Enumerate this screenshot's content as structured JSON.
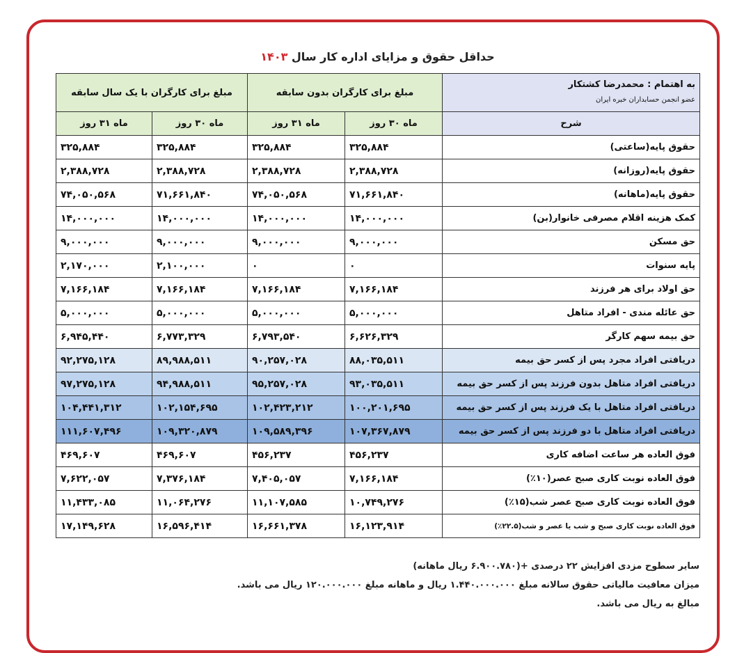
{
  "header": {
    "title": "حداقل حقوق و مزایای اداره کار سال",
    "year": "۱۴۰۳"
  },
  "table": {
    "author": "به اهتمام : محمدرضا کشتکار",
    "author_note": "عضو انجمن حسابداران خبره ایران",
    "group_headers": [
      "مبلغ برای کارگران بدون سابقه",
      "مبلغ برای کارگران با یک سال سابقه"
    ],
    "column_headers": [
      "شرح",
      "ماه ۳۰ روز",
      "ماه ۳۱ روز",
      "ماه ۳۰ روز",
      "ماه ۳۱ روز"
    ],
    "rows": [
      [
        "حقوق پایه(ساعتی)",
        "۳۲۵,۸۸۴",
        "۳۲۵,۸۸۴",
        "۳۲۵,۸۸۴",
        "۳۲۵,۸۸۴"
      ],
      [
        "حقوق پایه(روزانه)",
        "۲,۳۸۸,۷۲۸",
        "۲,۳۸۸,۷۲۸",
        "۲,۳۸۸,۷۲۸",
        "۲,۳۸۸,۷۲۸"
      ],
      [
        "حقوق پایه(ماهانه)",
        "۷۱,۶۶۱,۸۴۰",
        "۷۴,۰۵۰,۵۶۸",
        "۷۱,۶۶۱,۸۴۰",
        "۷۴,۰۵۰,۵۶۸"
      ],
      [
        "کمک هزینه اقلام مصرفی خانوار(بن)",
        "۱۴,۰۰۰,۰۰۰",
        "۱۴,۰۰۰,۰۰۰",
        "۱۴,۰۰۰,۰۰۰",
        "۱۴,۰۰۰,۰۰۰"
      ],
      [
        "حق مسکن",
        "۹,۰۰۰,۰۰۰",
        "۹,۰۰۰,۰۰۰",
        "۹,۰۰۰,۰۰۰",
        "۹,۰۰۰,۰۰۰"
      ],
      [
        "پایه سنوات",
        "۰",
        "۰",
        "۲,۱۰۰,۰۰۰",
        "۲,۱۷۰,۰۰۰"
      ],
      [
        "حق اولاد برای هر فرزند",
        "۷,۱۶۶,۱۸۴",
        "۷,۱۶۶,۱۸۴",
        "۷,۱۶۶,۱۸۴",
        "۷,۱۶۶,۱۸۴"
      ],
      [
        "حق عائله مندی - افراد متاهل",
        "۵,۰۰۰,۰۰۰",
        "۵,۰۰۰,۰۰۰",
        "۵,۰۰۰,۰۰۰",
        "۵,۰۰۰,۰۰۰"
      ],
      [
        "حق بیمه سهم کارگر",
        "۶,۶۲۶,۳۲۹",
        "۶,۷۹۳,۵۴۰",
        "۶,۷۷۳,۳۲۹",
        "۶,۹۴۵,۴۴۰"
      ],
      [
        "دریافتی افراد مجرد پس از کسر حق بیمه",
        "۸۸,۰۳۵,۵۱۱",
        "۹۰,۲۵۷,۰۲۸",
        "۸۹,۹۸۸,۵۱۱",
        "۹۲,۲۷۵,۱۲۸"
      ],
      [
        "دریافتی افراد متاهل بدون فرزند پس از کسر حق بیمه",
        "۹۳,۰۳۵,۵۱۱",
        "۹۵,۲۵۷,۰۲۸",
        "۹۴,۹۸۸,۵۱۱",
        "۹۷,۲۷۵,۱۲۸"
      ],
      [
        "دریافتی افراد متاهل با یک فرزند پس از کسر حق بیمه",
        "۱۰۰,۲۰۱,۶۹۵",
        "۱۰۲,۴۲۳,۲۱۲",
        "۱۰۲,۱۵۴,۶۹۵",
        "۱۰۴,۴۴۱,۳۱۲"
      ],
      [
        "دریافتی افراد متاهل با دو فرزند پس از کسر حق بیمه",
        "۱۰۷,۳۶۷,۸۷۹",
        "۱۰۹,۵۸۹,۳۹۶",
        "۱۰۹,۳۲۰,۸۷۹",
        "۱۱۱,۶۰۷,۴۹۶"
      ],
      [
        "فوق العاده هر ساعت اضافه کاری",
        "۴۵۶,۲۳۷",
        "۴۵۶,۲۳۷",
        "۴۶۹,۶۰۷",
        "۴۶۹,۶۰۷"
      ],
      [
        "فوق العاده نوبت کاری صبح عصر(۱۰٪)",
        "۷,۱۶۶,۱۸۴",
        "۷,۴۰۵,۰۵۷",
        "۷,۳۷۶,۱۸۴",
        "۷,۶۲۲,۰۵۷"
      ],
      [
        "فوق العاده نوبت کاری صبح عصر شب(۱۵٪)",
        "۱۰,۷۴۹,۲۷۶",
        "۱۱,۱۰۷,۵۸۵",
        "۱۱,۰۶۴,۲۷۶",
        "۱۱,۴۳۳,۰۸۵"
      ],
      [
        "فوق العاده نوبت کاری صبح و شب یا عصر و شب(۲۲.۵٪)",
        "۱۶,۱۲۳,۹۱۴",
        "۱۶,۶۶۱,۳۷۸",
        "۱۶,۵۹۶,۴۱۴",
        "۱۷,۱۴۹,۶۲۸"
      ]
    ]
  },
  "notes": [
    "سایر سطوح مزدی افزایش ۲۲ درصدی +(۶.۹۰۰.۷۸۰ ریال ماهانه)",
    "میزان معافیت مالیاتی حقوق سالانه مبلغ ۱.۴۴۰.۰۰۰.۰۰۰ ریال و ماهانه مبلغ ۱۲۰.۰۰۰.۰۰۰ ریال می باشد.",
    "مبالغ به ریال می باشد."
  ]
}
